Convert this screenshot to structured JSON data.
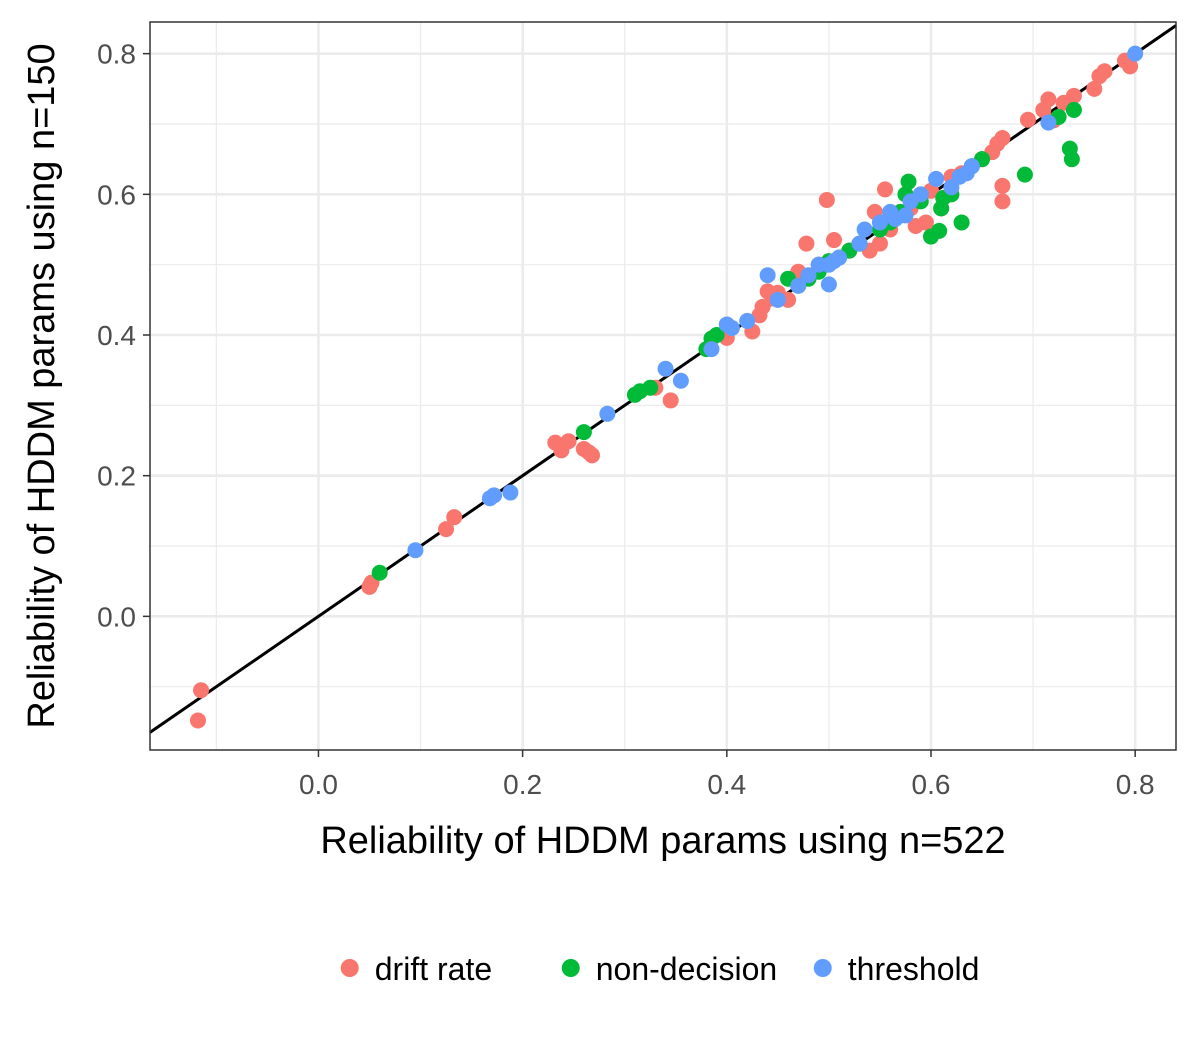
{
  "chart_data": {
    "type": "scatter",
    "xlabel": "Reliability of HDDM params using n=522",
    "ylabel": "Reliability of HDDM params using n=150",
    "xlim": [
      -0.165,
      0.84
    ],
    "ylim": [
      -0.19,
      0.845
    ],
    "x_ticks": [
      "0.0",
      "0.2",
      "0.4",
      "0.6",
      "0.8"
    ],
    "y_ticks": [
      "0.0",
      "0.2",
      "0.4",
      "0.6",
      "0.8"
    ],
    "grid": true,
    "legend_position": "bottom",
    "reference_line": {
      "slope": 1,
      "intercept": 0,
      "color": "#000000"
    },
    "series": [
      {
        "name": "drift rate",
        "color": "#F8766D",
        "points": [
          [
            -0.115,
            -0.105
          ],
          [
            -0.118,
            -0.148
          ],
          [
            0.05,
            0.042
          ],
          [
            0.052,
            0.048
          ],
          [
            0.125,
            0.124
          ],
          [
            0.133,
            0.141
          ],
          [
            0.232,
            0.247
          ],
          [
            0.238,
            0.236
          ],
          [
            0.245,
            0.249
          ],
          [
            0.26,
            0.238
          ],
          [
            0.265,
            0.233
          ],
          [
            0.268,
            0.229
          ],
          [
            0.33,
            0.325
          ],
          [
            0.345,
            0.307
          ],
          [
            0.4,
            0.396
          ],
          [
            0.425,
            0.405
          ],
          [
            0.432,
            0.428
          ],
          [
            0.435,
            0.44
          ],
          [
            0.44,
            0.462
          ],
          [
            0.445,
            0.452
          ],
          [
            0.45,
            0.46
          ],
          [
            0.46,
            0.45
          ],
          [
            0.47,
            0.49
          ],
          [
            0.478,
            0.53
          ],
          [
            0.49,
            0.5
          ],
          [
            0.498,
            0.592
          ],
          [
            0.505,
            0.535
          ],
          [
            0.52,
            0.52
          ],
          [
            0.53,
            0.53
          ],
          [
            0.54,
            0.52
          ],
          [
            0.545,
            0.575
          ],
          [
            0.55,
            0.53
          ],
          [
            0.555,
            0.607
          ],
          [
            0.56,
            0.55
          ],
          [
            0.57,
            0.57
          ],
          [
            0.58,
            0.58
          ],
          [
            0.585,
            0.555
          ],
          [
            0.59,
            0.6
          ],
          [
            0.595,
            0.56
          ],
          [
            0.6,
            0.605
          ],
          [
            0.61,
            0.58
          ],
          [
            0.62,
            0.625
          ],
          [
            0.63,
            0.63
          ],
          [
            0.64,
            0.64
          ],
          [
            0.65,
            0.65
          ],
          [
            0.66,
            0.66
          ],
          [
            0.665,
            0.672
          ],
          [
            0.67,
            0.68
          ],
          [
            0.67,
            0.612
          ],
          [
            0.67,
            0.59
          ],
          [
            0.695,
            0.706
          ],
          [
            0.71,
            0.72
          ],
          [
            0.715,
            0.735
          ],
          [
            0.72,
            0.705
          ],
          [
            0.73,
            0.73
          ],
          [
            0.74,
            0.74
          ],
          [
            0.76,
            0.75
          ],
          [
            0.765,
            0.768
          ],
          [
            0.77,
            0.775
          ],
          [
            0.79,
            0.79
          ],
          [
            0.795,
            0.782
          ]
        ]
      },
      {
        "name": "non-decision",
        "color": "#00BA38",
        "points": [
          [
            0.06,
            0.062
          ],
          [
            0.26,
            0.262
          ],
          [
            0.31,
            0.315
          ],
          [
            0.315,
            0.32
          ],
          [
            0.325,
            0.325
          ],
          [
            0.38,
            0.38
          ],
          [
            0.385,
            0.395
          ],
          [
            0.39,
            0.4
          ],
          [
            0.46,
            0.48
          ],
          [
            0.47,
            0.47
          ],
          [
            0.48,
            0.48
          ],
          [
            0.49,
            0.49
          ],
          [
            0.5,
            0.505
          ],
          [
            0.51,
            0.51
          ],
          [
            0.52,
            0.52
          ],
          [
            0.53,
            0.53
          ],
          [
            0.55,
            0.55
          ],
          [
            0.56,
            0.56
          ],
          [
            0.57,
            0.575
          ],
          [
            0.575,
            0.6
          ],
          [
            0.578,
            0.618
          ],
          [
            0.59,
            0.59
          ],
          [
            0.6,
            0.54
          ],
          [
            0.608,
            0.548
          ],
          [
            0.61,
            0.58
          ],
          [
            0.612,
            0.595
          ],
          [
            0.62,
            0.6
          ],
          [
            0.63,
            0.56
          ],
          [
            0.64,
            0.64
          ],
          [
            0.65,
            0.65
          ],
          [
            0.692,
            0.628
          ],
          [
            0.725,
            0.71
          ],
          [
            0.736,
            0.665
          ],
          [
            0.738,
            0.65
          ],
          [
            0.74,
            0.72
          ]
        ]
      },
      {
        "name": "threshold",
        "color": "#619CFF",
        "points": [
          [
            0.095,
            0.094
          ],
          [
            0.168,
            0.168
          ],
          [
            0.172,
            0.172
          ],
          [
            0.188,
            0.176
          ],
          [
            0.283,
            0.288
          ],
          [
            0.34,
            0.352
          ],
          [
            0.355,
            0.335
          ],
          [
            0.385,
            0.38
          ],
          [
            0.4,
            0.415
          ],
          [
            0.405,
            0.41
          ],
          [
            0.42,
            0.42
          ],
          [
            0.44,
            0.485
          ],
          [
            0.45,
            0.45
          ],
          [
            0.47,
            0.47
          ],
          [
            0.48,
            0.485
          ],
          [
            0.49,
            0.5
          ],
          [
            0.5,
            0.5
          ],
          [
            0.505,
            0.505
          ],
          [
            0.51,
            0.51
          ],
          [
            0.53,
            0.53
          ],
          [
            0.535,
            0.55
          ],
          [
            0.55,
            0.56
          ],
          [
            0.56,
            0.575
          ],
          [
            0.565,
            0.565
          ],
          [
            0.575,
            0.57
          ],
          [
            0.58,
            0.59
          ],
          [
            0.59,
            0.6
          ],
          [
            0.605,
            0.622
          ],
          [
            0.62,
            0.61
          ],
          [
            0.628,
            0.625
          ],
          [
            0.635,
            0.63
          ],
          [
            0.64,
            0.64
          ],
          [
            0.715,
            0.702
          ],
          [
            0.8,
            0.8
          ],
          [
            0.5,
            0.472
          ]
        ]
      }
    ]
  }
}
